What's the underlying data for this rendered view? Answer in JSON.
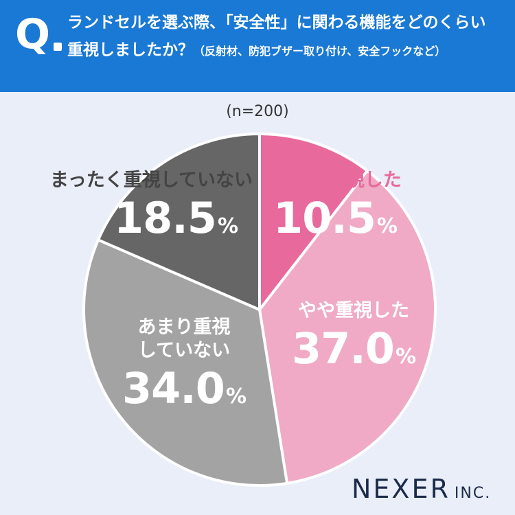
{
  "header": {
    "q_mark": "Q",
    "question_main": "ランドセルを選ぶ際、「安全性」に関わる機能をどのくらい重視しましたか？",
    "question_sub": "（反射材、防犯ブザー取り付け、安全フックなど）"
  },
  "n_label": "(n=200)",
  "chart_data": {
    "type": "pie",
    "title": "",
    "slices": [
      {
        "label": "とても重視した",
        "value": 10.5,
        "display": "10.5",
        "color": "#e8699c",
        "text_color": "#e8699c"
      },
      {
        "label": "やや重視した",
        "value": 37.0,
        "display": "37.0",
        "color": "#f0aac5",
        "text_color": "#ffffff"
      },
      {
        "label": "あまり重視していない",
        "value": 34.0,
        "display": "34.0",
        "color": "#a3a3a3",
        "text_color": "#ffffff"
      },
      {
        "label": "まったく重視していない",
        "value": 18.5,
        "display": "18.5",
        "color": "#666666",
        "text_color": "#333333"
      }
    ],
    "percent_symbol": "%",
    "start_angle": "12 o'clock",
    "direction": "clockwise"
  },
  "labels": {
    "slice0_cat": "とても重視した",
    "slice0_val": "10.5",
    "slice1_cat": "やや重視した",
    "slice1_val": "37.0",
    "slice2_cat_line1": "あまり重視",
    "slice2_cat_line2": "していない",
    "slice2_val": "34.0",
    "slice3_cat": "まったく重視していない",
    "slice3_val": "18.5",
    "pct": "%"
  },
  "logo": {
    "main": "NEXER",
    "suffix": "INC."
  }
}
